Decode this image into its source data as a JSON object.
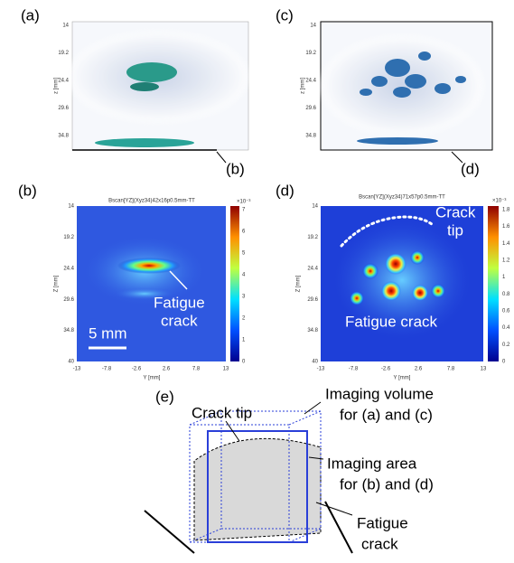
{
  "panels": {
    "a": {
      "label": "(a)",
      "pointer": "(b)",
      "z_label": "z [mm]",
      "z_ticks": [
        "14",
        "19.2",
        "24.4",
        "29.6",
        "34.8"
      ]
    },
    "c": {
      "label": "(c)",
      "pointer": "(d)",
      "z_label": "z [mm]",
      "z_ticks": [
        "14",
        "19.2",
        "24.4",
        "29.6",
        "34.8"
      ]
    },
    "b": {
      "label": "(b)",
      "title": "Bscan[YZ](Xyz34)42x16p0.5mm-TT",
      "y_label": "Z [mm]",
      "x_label": "Y [mm]",
      "y_ticks": [
        "14",
        "19.2",
        "24.4",
        "29.6",
        "34.8",
        "40"
      ],
      "x_ticks": [
        "-13",
        "-7.8",
        "-2.6",
        "2.6",
        "7.8",
        "13"
      ],
      "colorbar_exponent": "×10⁻³",
      "colorbar_ticks": [
        "7",
        "6",
        "5",
        "4",
        "3",
        "2",
        "1",
        "0"
      ],
      "annotation": [
        "Fatigue",
        "crack"
      ],
      "scale_bar": "5 mm"
    },
    "d": {
      "label": "(d)",
      "title": "Bscan[YZ](Xyz34)71x57p0.5mm-TT",
      "y_label": "Z [mm]",
      "x_label": "Y [mm]",
      "y_ticks": [
        "14",
        "19.2",
        "24.4",
        "29.6",
        "34.8",
        "40"
      ],
      "x_ticks": [
        "-13",
        "-7.8",
        "-2.6",
        "2.6",
        "7.8",
        "13"
      ],
      "colorbar_exponent": "×10⁻³",
      "colorbar_ticks": [
        "1.8",
        "1.6",
        "1.4",
        "1.2",
        "1",
        "0.8",
        "0.6",
        "0.4",
        "0.2",
        "0"
      ],
      "crack_tip": [
        "Crack",
        "tip"
      ],
      "fatigue_crack": "Fatigue crack"
    },
    "e": {
      "label": "(e)",
      "crack_tip": "Crack tip",
      "imaging_volume": [
        "Imaging volume",
        "for (a) and (c)"
      ],
      "imaging_area": [
        "Imaging area",
        "for (b) and (d)"
      ],
      "fatigue_crack": [
        "Fatigue",
        "crack"
      ]
    }
  }
}
